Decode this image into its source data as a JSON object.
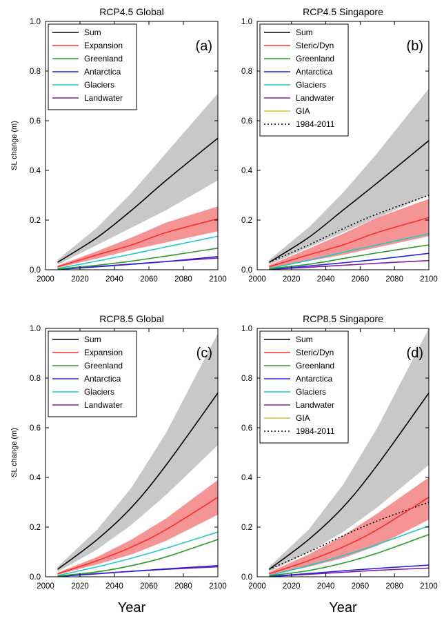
{
  "chart_data": [
    {
      "type": "line",
      "title": "RCP4.5 Global",
      "panel_label": "(a)",
      "xlabel": "",
      "ylabel": "SL change (m)",
      "xlim": [
        2000,
        2100
      ],
      "ylim": [
        0,
        1.0
      ],
      "xticks": [
        "2000",
        "2020",
        "2040",
        "2060",
        "2080",
        "2100"
      ],
      "yticks": [
        "0.0",
        "0.2",
        "0.4",
        "0.6",
        "0.8",
        "1.0"
      ],
      "legend_position": "top-left",
      "x": [
        2007,
        2030,
        2050,
        2070,
        2100
      ],
      "series": [
        {
          "name": "Sum",
          "color": "#000000",
          "style": "solid",
          "values": [
            0.03,
            0.13,
            0.24,
            0.36,
            0.53
          ],
          "band": {
            "lower": [
              0.02,
              0.1,
              0.17,
              0.24,
              0.36
            ],
            "upper": [
              0.04,
              0.17,
              0.31,
              0.47,
              0.71
            ],
            "color": "#c8c8c8"
          }
        },
        {
          "name": "Expansion",
          "color": "#ff2a2a",
          "style": "solid",
          "values": [
            0.012,
            0.06,
            0.1,
            0.15,
            0.205
          ],
          "band": {
            "lower": [
              0.008,
              0.045,
              0.08,
              0.11,
              0.155
            ],
            "upper": [
              0.016,
              0.075,
              0.13,
              0.19,
              0.255
            ],
            "color": "#f49494"
          }
        },
        {
          "name": "Greenland",
          "color": "#2a9a2a",
          "style": "solid",
          "values": [
            0.003,
            0.018,
            0.035,
            0.055,
            0.087
          ]
        },
        {
          "name": "Antarctica",
          "color": "#2525e0",
          "style": "solid",
          "values": [
            0.001,
            0.012,
            0.022,
            0.033,
            0.053
          ]
        },
        {
          "name": "Glaciers",
          "color": "#22c8c8",
          "style": "solid",
          "values": [
            0.005,
            0.035,
            0.063,
            0.092,
            0.135
          ]
        },
        {
          "name": "Landwater",
          "color": "#8a1a9a",
          "style": "solid",
          "values": [
            0.002,
            0.013,
            0.023,
            0.033,
            0.047
          ]
        }
      ]
    },
    {
      "type": "line",
      "title": "RCP4.5 Singapore",
      "panel_label": "(b)",
      "xlabel": "",
      "ylabel": "",
      "xlim": [
        2000,
        2100
      ],
      "ylim": [
        0,
        1.0
      ],
      "xticks": [
        "2000",
        "2020",
        "2040",
        "2060",
        "2080",
        "2100"
      ],
      "yticks": [
        "0.0",
        "0.2",
        "0.4",
        "0.6",
        "0.8",
        "1.0"
      ],
      "legend_position": "top-left",
      "x": [
        2007,
        2030,
        2050,
        2070,
        2100
      ],
      "series": [
        {
          "name": "Sum",
          "color": "#000000",
          "style": "solid",
          "values": [
            0.03,
            0.13,
            0.24,
            0.35,
            0.52
          ],
          "band": {
            "lower": [
              0.02,
              0.09,
              0.15,
              0.21,
              0.3
            ],
            "upper": [
              0.04,
              0.17,
              0.31,
              0.47,
              0.73
            ],
            "color": "#c8c8c8"
          }
        },
        {
          "name": "Steric/Dyn",
          "color": "#ff2a2a",
          "style": "solid",
          "values": [
            0.012,
            0.06,
            0.1,
            0.15,
            0.21
          ],
          "band": {
            "lower": [
              0.006,
              0.035,
              0.06,
              0.09,
              0.135
            ],
            "upper": [
              0.018,
              0.085,
              0.145,
              0.21,
              0.285
            ],
            "color": "#f49494"
          }
        },
        {
          "name": "Greenland",
          "color": "#2a9a2a",
          "style": "solid",
          "values": [
            0.004,
            0.022,
            0.045,
            0.068,
            0.1
          ]
        },
        {
          "name": "Antarctica",
          "color": "#2525e0",
          "style": "solid",
          "values": [
            0.001,
            0.015,
            0.028,
            0.042,
            0.066
          ]
        },
        {
          "name": "Glaciers",
          "color": "#22c8c8",
          "style": "solid",
          "values": [
            0.005,
            0.038,
            0.07,
            0.1,
            0.145
          ]
        },
        {
          "name": "Landwater",
          "color": "#8a1a9a",
          "style": "solid",
          "values": [
            0.001,
            0.01,
            0.018,
            0.026,
            0.037
          ]
        },
        {
          "name": "GIA",
          "color": "#c8c828",
          "style": "solid",
          "values": [
            -0.004,
            -0.012,
            -0.019,
            -0.026,
            -0.037
          ]
        },
        {
          "name": "1984-2011",
          "color": "#000000",
          "style": "dotted",
          "values": [
            0.03,
            0.1,
            0.165,
            0.225,
            0.3
          ]
        }
      ]
    },
    {
      "type": "line",
      "title": "RCP8.5 Global",
      "panel_label": "(c)",
      "xlabel": "Year",
      "ylabel": "SL change (m)",
      "xlim": [
        2000,
        2100
      ],
      "ylim": [
        0,
        1.0
      ],
      "xticks": [
        "2000",
        "2020",
        "2040",
        "2060",
        "2080",
        "2100"
      ],
      "yticks": [
        "0.0",
        "0.2",
        "0.4",
        "0.6",
        "0.8",
        "1.0"
      ],
      "legend_position": "top-left",
      "x": [
        2007,
        2030,
        2050,
        2070,
        2100
      ],
      "series": [
        {
          "name": "Sum",
          "color": "#000000",
          "style": "solid",
          "values": [
            0.03,
            0.15,
            0.28,
            0.45,
            0.74
          ],
          "band": {
            "lower": [
              0.02,
              0.11,
              0.21,
              0.33,
              0.53
            ],
            "upper": [
              0.04,
              0.19,
              0.36,
              0.58,
              0.98
            ],
            "color": "#c8c8c8"
          }
        },
        {
          "name": "Expansion",
          "color": "#ff2a2a",
          "style": "solid",
          "values": [
            0.012,
            0.065,
            0.12,
            0.19,
            0.32
          ],
          "band": {
            "lower": [
              0.008,
              0.05,
              0.09,
              0.145,
              0.25
            ],
            "upper": [
              0.016,
              0.08,
              0.15,
              0.235,
              0.39
            ],
            "color": "#f49494"
          }
        },
        {
          "name": "Greenland",
          "color": "#2a9a2a",
          "style": "solid",
          "values": [
            0.003,
            0.02,
            0.045,
            0.08,
            0.15
          ]
        },
        {
          "name": "Antarctica",
          "color": "#2525e0",
          "style": "solid",
          "values": [
            0.001,
            0.012,
            0.022,
            0.032,
            0.045
          ]
        },
        {
          "name": "Glaciers",
          "color": "#22c8c8",
          "style": "solid",
          "values": [
            0.005,
            0.04,
            0.075,
            0.115,
            0.18
          ]
        },
        {
          "name": "Landwater",
          "color": "#8a1a9a",
          "style": "solid",
          "values": [
            0.002,
            0.013,
            0.022,
            0.03,
            0.04
          ]
        }
      ]
    },
    {
      "type": "line",
      "title": "RCP8.5 Singapore",
      "panel_label": "(d)",
      "xlabel": "Year",
      "ylabel": "",
      "xlim": [
        2000,
        2100
      ],
      "ylim": [
        0,
        1.0
      ],
      "xticks": [
        "2000",
        "2020",
        "2040",
        "2060",
        "2080",
        "2100"
      ],
      "yticks": [
        "0.0",
        "0.2",
        "0.4",
        "0.6",
        "0.8",
        "1.0"
      ],
      "legend_position": "top-left",
      "x": [
        2007,
        2030,
        2050,
        2070,
        2100
      ],
      "series": [
        {
          "name": "Sum",
          "color": "#000000",
          "style": "solid",
          "values": [
            0.03,
            0.15,
            0.28,
            0.45,
            0.74
          ],
          "band": {
            "lower": [
              0.02,
              0.1,
              0.18,
              0.28,
              0.45
            ],
            "upper": [
              0.04,
              0.19,
              0.37,
              0.6,
              1.0
            ],
            "color": "#c8c8c8"
          }
        },
        {
          "name": "Steric/Dyn",
          "color": "#ff2a2a",
          "style": "solid",
          "values": [
            0.012,
            0.065,
            0.12,
            0.19,
            0.32
          ],
          "band": {
            "lower": [
              0.006,
              0.04,
              0.075,
              0.125,
              0.23
            ],
            "upper": [
              0.018,
              0.09,
              0.165,
              0.255,
              0.4
            ],
            "color": "#f49494"
          }
        },
        {
          "name": "Greenland",
          "color": "#2a9a2a",
          "style": "solid",
          "values": [
            0.004,
            0.025,
            0.055,
            0.095,
            0.17
          ]
        },
        {
          "name": "Antarctica",
          "color": "#2525e0",
          "style": "solid",
          "values": [
            0.001,
            0.013,
            0.024,
            0.034,
            0.047
          ]
        },
        {
          "name": "Glaciers",
          "color": "#22c8c8",
          "style": "solid",
          "values": [
            0.005,
            0.045,
            0.085,
            0.13,
            0.205
          ]
        },
        {
          "name": "Landwater",
          "color": "#8a1a9a",
          "style": "solid",
          "values": [
            0.001,
            0.01,
            0.018,
            0.026,
            0.035
          ]
        },
        {
          "name": "GIA",
          "color": "#c8c828",
          "style": "solid",
          "values": [
            -0.004,
            -0.012,
            -0.019,
            -0.026,
            -0.037
          ]
        },
        {
          "name": "1984-2011",
          "color": "#000000",
          "style": "dotted",
          "values": [
            0.03,
            0.1,
            0.165,
            0.225,
            0.3
          ]
        }
      ]
    }
  ]
}
